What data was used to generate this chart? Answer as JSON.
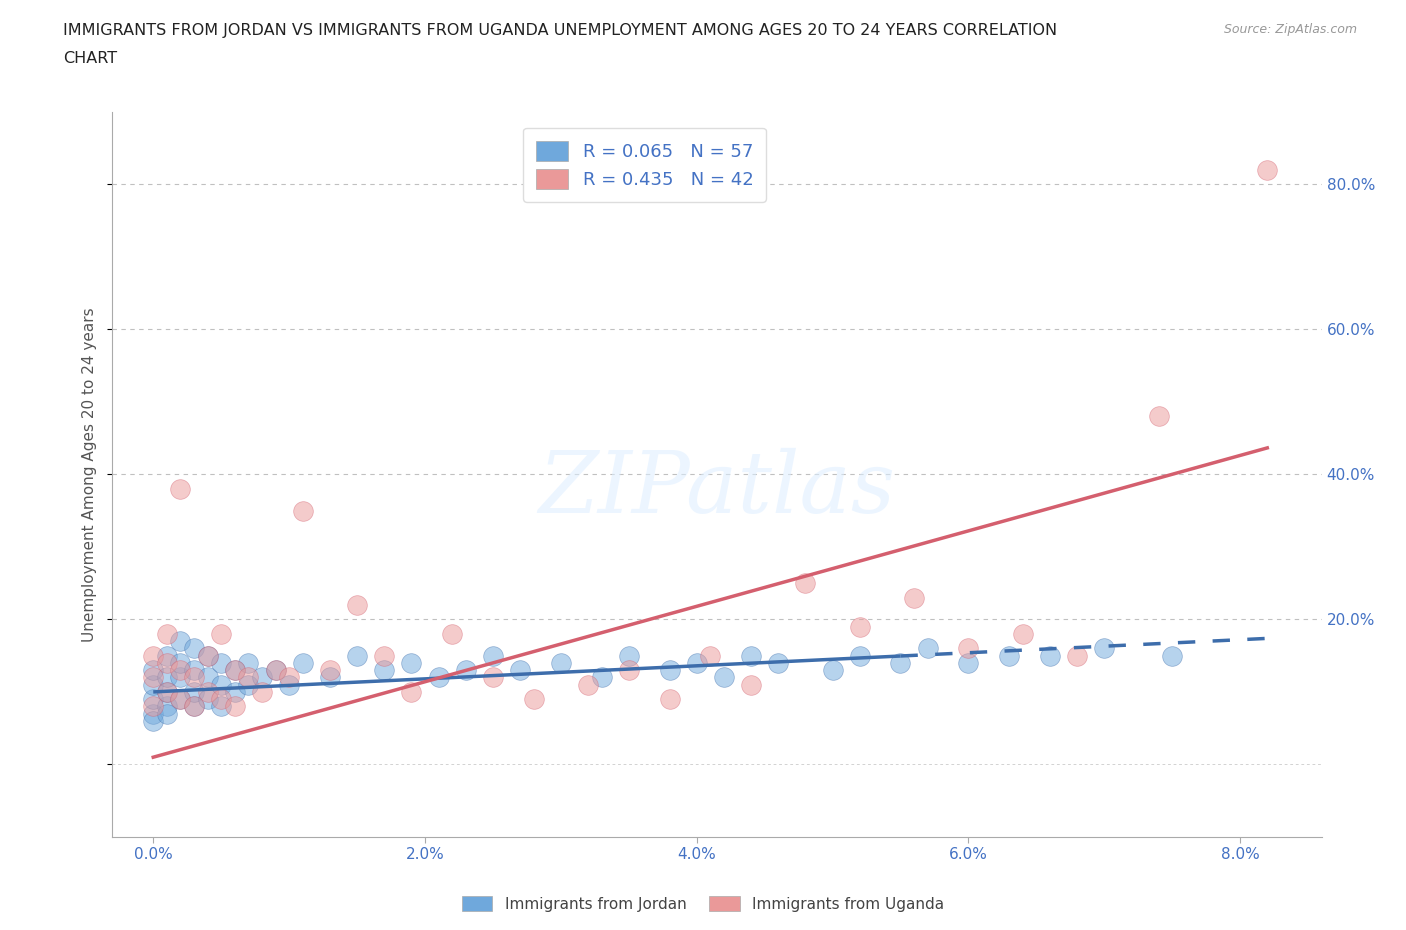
{
  "title_line1": "IMMIGRANTS FROM JORDAN VS IMMIGRANTS FROM UGANDA UNEMPLOYMENT AMONG AGES 20 TO 24 YEARS CORRELATION",
  "title_line2": "CHART",
  "source": "Source: ZipAtlas.com",
  "ylabel": "Unemployment Among Ages 20 to 24 years",
  "x_tick_labels": [
    "0.0%",
    "2.0%",
    "4.0%",
    "6.0%",
    "8.0%"
  ],
  "x_tick_values": [
    0.0,
    0.02,
    0.04,
    0.06,
    0.08
  ],
  "y_tick_labels": [
    "20.0%",
    "40.0%",
    "60.0%",
    "80.0%"
  ],
  "y_tick_values": [
    0.2,
    0.4,
    0.6,
    0.8
  ],
  "xlim": [
    -0.003,
    0.086
  ],
  "ylim": [
    -0.1,
    0.9
  ],
  "jordan_color": "#6fa8dc",
  "uganda_color": "#ea9999",
  "jordan_R": 0.065,
  "jordan_N": 57,
  "uganda_R": 0.435,
  "uganda_N": 42,
  "jordan_trend_color": "#3d6dab",
  "uganda_trend_color": "#d45f6e",
  "legend_label_jordan": "Immigrants from Jordan",
  "legend_label_uganda": "Immigrants from Uganda",
  "jordan_x": [
    0.0,
    0.0,
    0.0,
    0.0,
    0.0,
    0.001,
    0.001,
    0.001,
    0.001,
    0.001,
    0.002,
    0.002,
    0.002,
    0.002,
    0.003,
    0.003,
    0.003,
    0.003,
    0.004,
    0.004,
    0.004,
    0.005,
    0.005,
    0.005,
    0.006,
    0.006,
    0.007,
    0.007,
    0.008,
    0.009,
    0.01,
    0.011,
    0.013,
    0.015,
    0.017,
    0.019,
    0.021,
    0.023,
    0.025,
    0.027,
    0.03,
    0.033,
    0.035,
    0.038,
    0.04,
    0.042,
    0.044,
    0.046,
    0.05,
    0.052,
    0.055,
    0.057,
    0.06,
    0.063,
    0.066,
    0.07,
    0.075
  ],
  "jordan_y": [
    0.07,
    0.09,
    0.11,
    0.13,
    0.06,
    0.08,
    0.1,
    0.12,
    0.15,
    0.07,
    0.09,
    0.12,
    0.14,
    0.17,
    0.08,
    0.1,
    0.13,
    0.16,
    0.09,
    0.12,
    0.15,
    0.08,
    0.11,
    0.14,
    0.1,
    0.13,
    0.11,
    0.14,
    0.12,
    0.13,
    0.11,
    0.14,
    0.12,
    0.15,
    0.13,
    0.14,
    0.12,
    0.13,
    0.15,
    0.13,
    0.14,
    0.12,
    0.15,
    0.13,
    0.14,
    0.12,
    0.15,
    0.14,
    0.13,
    0.15,
    0.14,
    0.16,
    0.14,
    0.15,
    0.15,
    0.16,
    0.15
  ],
  "uganda_x": [
    0.0,
    0.0,
    0.0,
    0.001,
    0.001,
    0.001,
    0.002,
    0.002,
    0.002,
    0.003,
    0.003,
    0.004,
    0.004,
    0.005,
    0.005,
    0.006,
    0.006,
    0.007,
    0.008,
    0.009,
    0.01,
    0.011,
    0.013,
    0.015,
    0.017,
    0.019,
    0.022,
    0.025,
    0.028,
    0.032,
    0.035,
    0.038,
    0.041,
    0.044,
    0.048,
    0.052,
    0.056,
    0.06,
    0.064,
    0.068,
    0.074,
    0.082
  ],
  "uganda_y": [
    0.08,
    0.12,
    0.15,
    0.1,
    0.14,
    0.18,
    0.09,
    0.13,
    0.38,
    0.08,
    0.12,
    0.1,
    0.15,
    0.09,
    0.18,
    0.08,
    0.13,
    0.12,
    0.1,
    0.13,
    0.12,
    0.35,
    0.13,
    0.22,
    0.15,
    0.1,
    0.18,
    0.12,
    0.09,
    0.11,
    0.13,
    0.09,
    0.15,
    0.11,
    0.25,
    0.19,
    0.23,
    0.16,
    0.18,
    0.15,
    0.48,
    0.82
  ],
  "jordan_trend_x0": 0.0,
  "jordan_trend_x1": 0.055,
  "jordan_trend_x_dash": 0.082,
  "jordan_trend_y_intercept": 0.1,
  "jordan_trend_slope": 0.9,
  "uganda_trend_x0": 0.0,
  "uganda_trend_x1": 0.082,
  "uganda_trend_y_intercept": 0.01,
  "uganda_trend_slope": 5.2
}
